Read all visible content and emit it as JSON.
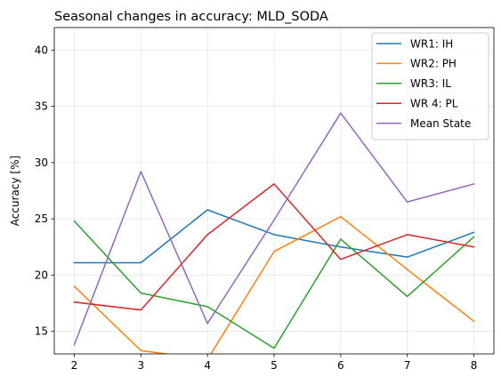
{
  "chart_data": {
    "type": "line",
    "title": "Seasonal changes in accuracy: MLD_SODA",
    "xlabel": "",
    "ylabel": "Accuracy [%]",
    "x": [
      2,
      3,
      4,
      5,
      6,
      7,
      8
    ],
    "xlim": [
      1.7,
      8.3
    ],
    "ylim": [
      13,
      42
    ],
    "xticks": [
      2,
      3,
      4,
      5,
      6,
      7,
      8
    ],
    "yticks": [
      15,
      20,
      25,
      30,
      35,
      40
    ],
    "grid": true,
    "legend_position": "top-right",
    "series": [
      {
        "name": "WR1: IH",
        "color": "#1f77b4",
        "values": [
          21.1,
          21.1,
          25.8,
          23.6,
          22.5,
          21.6,
          23.8
        ]
      },
      {
        "name": "WR2: PH",
        "color": "#ff7f0e",
        "values": [
          19.0,
          13.3,
          12.5,
          22.1,
          25.2,
          20.5,
          15.9
        ]
      },
      {
        "name": "WR3: IL",
        "color": "#2ca02c",
        "values": [
          24.8,
          18.4,
          17.2,
          13.5,
          23.2,
          18.1,
          23.4
        ]
      },
      {
        "name": "WR 4: PL",
        "color": "#d62728",
        "values": [
          17.6,
          16.9,
          23.6,
          28.1,
          21.4,
          23.6,
          22.5
        ]
      },
      {
        "name": "Mean State",
        "color": "#9467bd",
        "values": [
          13.8,
          29.2,
          15.7,
          24.9,
          34.4,
          26.5,
          28.1
        ]
      }
    ]
  }
}
